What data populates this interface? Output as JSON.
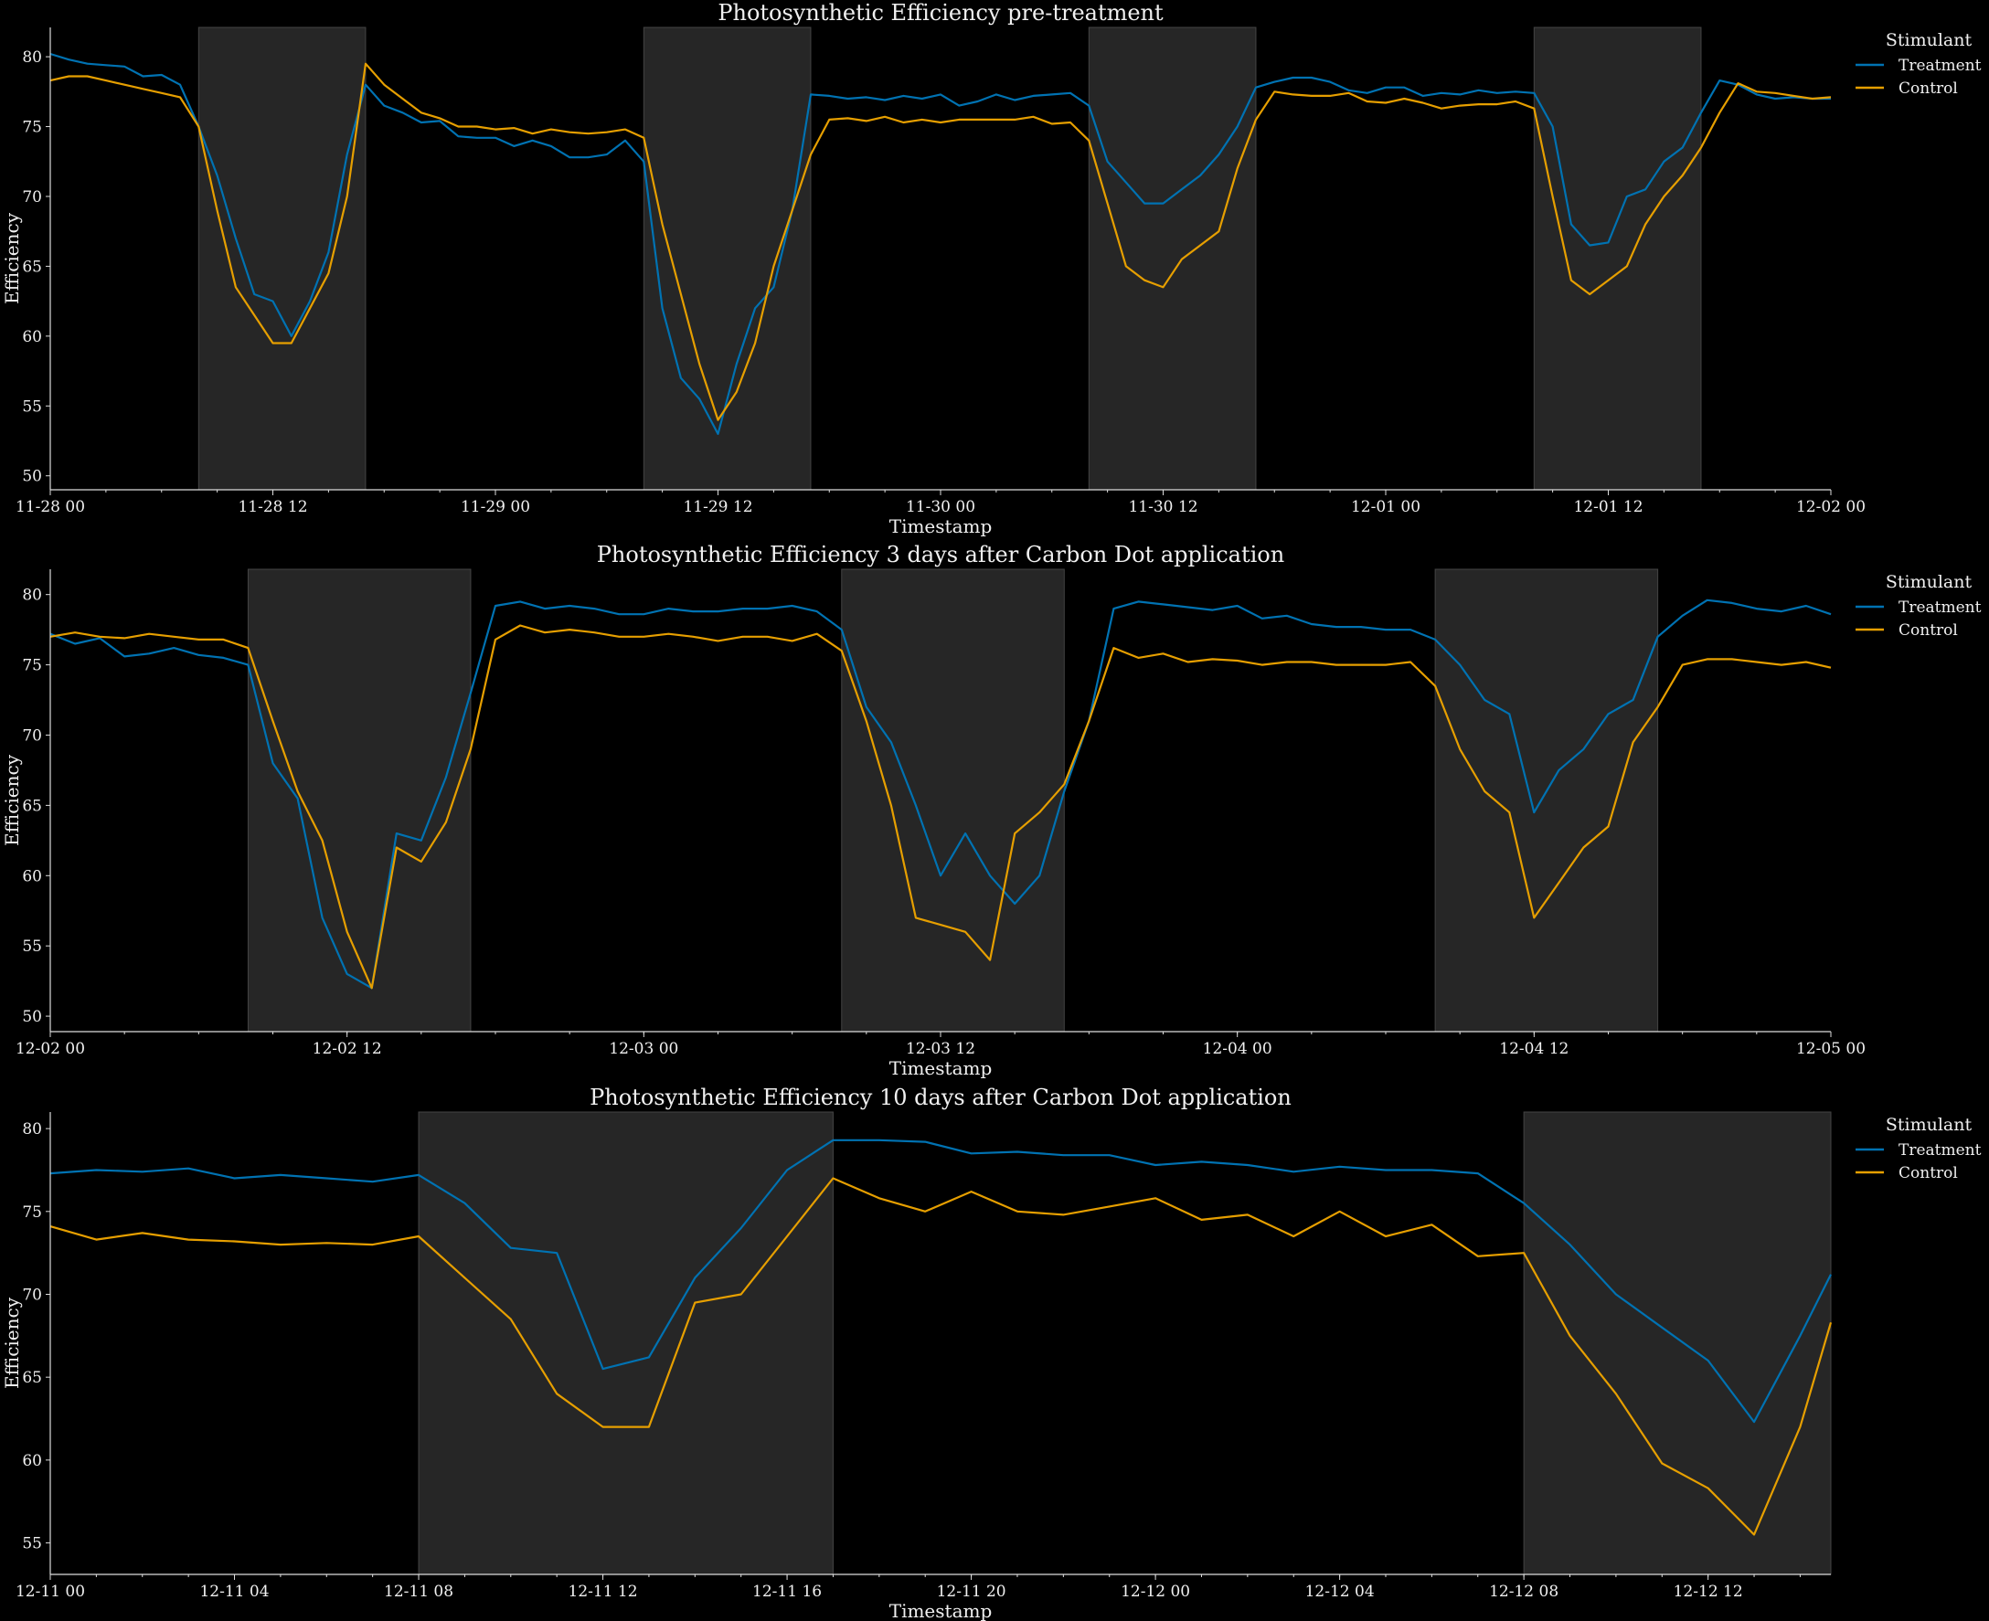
{
  "chart_data": [
    {
      "type": "line",
      "title": "Photosynthetic Efficiency pre-treatment",
      "xlabel": "Timestamp",
      "ylabel": "Efficiency",
      "xlim": [
        "11-28 00:00",
        "12-02 00:00"
      ],
      "ylim": [
        49,
        82.1
      ],
      "yticks": [
        50,
        55,
        60,
        65,
        70,
        75,
        80
      ],
      "xticks": [
        "11-28 00",
        "11-28 12",
        "11-29 00",
        "11-29 12",
        "11-30 00",
        "11-30 12",
        "12-01 00",
        "12-01 12",
        "12-02 00"
      ],
      "grid": false,
      "legend": {
        "title": "Stimulant",
        "placement": "outside-right"
      },
      "shaded_spans": [
        [
          "11-28 08:00",
          "11-28 17:00"
        ],
        [
          "11-29 08:00",
          "11-29 17:00"
        ],
        [
          "11-30 08:00",
          "11-30 17:00"
        ],
        [
          "12-01 08:00",
          "12-01 17:00"
        ]
      ],
      "x": [
        "11-28 00:00",
        "11-28 01:00",
        "11-28 02:00",
        "11-28 03:00",
        "11-28 04:00",
        "11-28 05:00",
        "11-28 06:00",
        "11-28 07:00",
        "11-28 08:00",
        "11-28 09:00",
        "11-28 10:00",
        "11-28 11:00",
        "11-28 12:00",
        "11-28 13:00",
        "11-28 14:00",
        "11-28 15:00",
        "11-28 16:00",
        "11-28 17:00",
        "11-28 18:00",
        "11-28 19:00",
        "11-28 20:00",
        "11-28 21:00",
        "11-28 22:00",
        "11-28 23:00",
        "11-29 00:00",
        "11-29 01:00",
        "11-29 02:00",
        "11-29 03:00",
        "11-29 04:00",
        "11-29 05:00",
        "11-29 06:00",
        "11-29 07:00",
        "11-29 08:00",
        "11-29 09:00",
        "11-29 10:00",
        "11-29 11:00",
        "11-29 12:00",
        "11-29 13:00",
        "11-29 14:00",
        "11-29 15:00",
        "11-29 16:00",
        "11-29 17:00",
        "11-29 18:00",
        "11-29 19:00",
        "11-29 20:00",
        "11-29 21:00",
        "11-29 22:00",
        "11-29 23:00",
        "11-30 00:00",
        "11-30 01:00",
        "11-30 02:00",
        "11-30 03:00",
        "11-30 04:00",
        "11-30 05:00",
        "11-30 06:00",
        "11-30 07:00",
        "11-30 08:00",
        "11-30 09:00",
        "11-30 10:00",
        "11-30 11:00",
        "11-30 12:00",
        "11-30 13:00",
        "11-30 14:00",
        "11-30 15:00",
        "11-30 16:00",
        "11-30 17:00",
        "11-30 18:00",
        "11-30 19:00",
        "11-30 20:00",
        "11-30 21:00",
        "11-30 22:00",
        "11-30 23:00",
        "12-01 00:00",
        "12-01 01:00",
        "12-01 02:00",
        "12-01 03:00",
        "12-01 04:00",
        "12-01 05:00",
        "12-01 06:00",
        "12-01 07:00",
        "12-01 08:00",
        "12-01 09:00",
        "12-01 10:00",
        "12-01 11:00",
        "12-01 12:00",
        "12-01 13:00",
        "12-01 14:00",
        "12-01 15:00",
        "12-01 16:00",
        "12-01 17:00",
        "12-01 18:00",
        "12-01 19:00",
        "12-01 20:00",
        "12-01 21:00",
        "12-01 22:00",
        "12-01 23:00",
        "12-02 00:00"
      ],
      "series": [
        {
          "name": "Treatment",
          "color": "#0072B2",
          "values": [
            80.2,
            79.8,
            79.5,
            79.4,
            79.3,
            78.6,
            78.7,
            78.0,
            75.0,
            71.5,
            67.0,
            63.0,
            62.5,
            60.0,
            62.5,
            66.0,
            73.0,
            78.0,
            76.5,
            76.0,
            75.3,
            75.4,
            74.3,
            74.2,
            74.2,
            73.6,
            74.0,
            73.6,
            72.8,
            72.8,
            73.0,
            74.0,
            72.5,
            62.0,
            57.0,
            55.5,
            53.0,
            58.0,
            62.0,
            63.5,
            69.0,
            77.3,
            77.2,
            77.0,
            77.1,
            76.9,
            77.2,
            77.0,
            77.3,
            76.5,
            76.8,
            77.3,
            76.9,
            77.2,
            77.3,
            77.4,
            76.5,
            72.5,
            71.0,
            69.5,
            69.5,
            70.5,
            71.5,
            73.0,
            75.0,
            77.8,
            78.2,
            78.5,
            78.5,
            78.2,
            77.6,
            77.4,
            77.8,
            77.8,
            77.2,
            77.4,
            77.3,
            77.6,
            77.4,
            77.5,
            77.4,
            75.0,
            68.0,
            66.5,
            66.7,
            70.0,
            70.5,
            72.5,
            73.5,
            76.0,
            78.3,
            78.0,
            77.3,
            77.0,
            77.1,
            77.0,
            77.0
          ]
        },
        {
          "name": "Control",
          "color": "#E69F00",
          "values": [
            78.3,
            78.6,
            78.6,
            78.3,
            78.0,
            77.7,
            77.4,
            77.1,
            75.0,
            69.0,
            63.5,
            61.5,
            59.5,
            59.5,
            62.0,
            64.5,
            70.0,
            79.5,
            78.0,
            77.0,
            76.0,
            75.6,
            75.0,
            75.0,
            74.8,
            74.9,
            74.5,
            74.8,
            74.6,
            74.5,
            74.6,
            74.8,
            74.2,
            68.0,
            63.0,
            58.0,
            54.0,
            56.0,
            59.5,
            65.0,
            69.0,
            73.0,
            75.5,
            75.6,
            75.4,
            75.7,
            75.3,
            75.5,
            75.3,
            75.5,
            75.5,
            75.5,
            75.5,
            75.7,
            75.2,
            75.3,
            74.0,
            69.5,
            65.0,
            64.0,
            63.5,
            65.5,
            66.5,
            67.5,
            72.0,
            75.5,
            77.5,
            77.3,
            77.2,
            77.2,
            77.4,
            76.8,
            76.7,
            77.0,
            76.7,
            76.3,
            76.5,
            76.6,
            76.6,
            76.8,
            76.3,
            70.0,
            64.0,
            63.0,
            64.0,
            65.0,
            68.0,
            70.0,
            71.5,
            73.5,
            76.0,
            78.1,
            77.5,
            77.4,
            77.2,
            77.0,
            77.1
          ]
        }
      ]
    },
    {
      "type": "line",
      "title": "Photosynthetic Efficiency 3 days after Carbon Dot application",
      "xlabel": "Timestamp",
      "ylabel": "Efficiency",
      "xlim": [
        "12-02 00:00",
        "12-05 00:00"
      ],
      "ylim": [
        48.9,
        81.8
      ],
      "yticks": [
        50,
        55,
        60,
        65,
        70,
        75,
        80
      ],
      "xticks": [
        "12-02 00",
        "12-02 12",
        "12-03 00",
        "12-03 12",
        "12-04 00",
        "12-04 12",
        "12-05 00"
      ],
      "grid": false,
      "legend": {
        "title": "Stimulant",
        "placement": "outside-right"
      },
      "shaded_spans": [
        [
          "12-02 08:00",
          "12-02 17:00"
        ],
        [
          "12-03 08:00",
          "12-03 17:00"
        ],
        [
          "12-04 08:00",
          "12-04 17:00"
        ]
      ],
      "x": [
        "12-02 00:00",
        "12-02 01:00",
        "12-02 02:00",
        "12-02 03:00",
        "12-02 04:00",
        "12-02 05:00",
        "12-02 06:00",
        "12-02 07:00",
        "12-02 08:00",
        "12-02 09:00",
        "12-02 10:00",
        "12-02 11:00",
        "12-02 12:00",
        "12-02 13:00",
        "12-02 14:00",
        "12-02 15:00",
        "12-02 16:00",
        "12-02 17:00",
        "12-02 18:00",
        "12-02 19:00",
        "12-02 20:00",
        "12-02 21:00",
        "12-02 22:00",
        "12-02 23:00",
        "12-03 00:00",
        "12-03 01:00",
        "12-03 02:00",
        "12-03 03:00",
        "12-03 04:00",
        "12-03 05:00",
        "12-03 06:00",
        "12-03 07:00",
        "12-03 08:00",
        "12-03 09:00",
        "12-03 10:00",
        "12-03 11:00",
        "12-03 12:00",
        "12-03 13:00",
        "12-03 14:00",
        "12-03 15:00",
        "12-03 16:00",
        "12-03 17:00",
        "12-03 18:00",
        "12-03 19:00",
        "12-03 20:00",
        "12-03 21:00",
        "12-03 22:00",
        "12-03 23:00",
        "12-04 00:00",
        "12-04 01:00",
        "12-04 02:00",
        "12-04 03:00",
        "12-04 04:00",
        "12-04 05:00",
        "12-04 06:00",
        "12-04 07:00",
        "12-04 08:00",
        "12-04 09:00",
        "12-04 10:00",
        "12-04 11:00",
        "12-04 12:00",
        "12-04 13:00",
        "12-04 14:00",
        "12-04 15:00",
        "12-04 16:00",
        "12-04 17:00",
        "12-04 18:00",
        "12-04 19:00",
        "12-04 20:00",
        "12-04 21:00",
        "12-04 22:00",
        "12-04 23:00",
        "12-05 00:00"
      ],
      "series": [
        {
          "name": "Treatment",
          "color": "#0072B2",
          "values": [
            77.2,
            76.5,
            76.9,
            75.6,
            75.8,
            76.2,
            75.7,
            75.5,
            75.0,
            68.0,
            65.5,
            57.0,
            53.0,
            52.0,
            63.0,
            62.5,
            67.0,
            73.0,
            79.2,
            79.5,
            79.0,
            79.2,
            79.0,
            78.6,
            78.6,
            79.0,
            78.8,
            78.8,
            79.0,
            79.0,
            79.2,
            78.8,
            77.5,
            72.0,
            69.5,
            65.0,
            60.0,
            63.0,
            60.0,
            58.0,
            60.0,
            66.0,
            71.0,
            79.0,
            79.5,
            79.3,
            79.1,
            78.9,
            79.2,
            78.3,
            78.5,
            77.9,
            77.7,
            77.7,
            77.5,
            77.5,
            76.8,
            75.0,
            72.5,
            71.5,
            64.5,
            67.5,
            69.0,
            71.5,
            72.5,
            77.0,
            78.5,
            79.6,
            79.4,
            79.0,
            78.8,
            79.2,
            78.6
          ]
        },
        {
          "name": "Control",
          "color": "#E69F00",
          "values": [
            77.0,
            77.3,
            77.0,
            76.9,
            77.2,
            77.0,
            76.8,
            76.8,
            76.2,
            71.0,
            66.0,
            62.5,
            56.0,
            52.0,
            62.0,
            61.0,
            63.8,
            69.0,
            76.8,
            77.8,
            77.3,
            77.5,
            77.3,
            77.0,
            77.0,
            77.2,
            77.0,
            76.7,
            77.0,
            77.0,
            76.7,
            77.2,
            76.0,
            71.0,
            65.0,
            57.0,
            56.5,
            56.0,
            54.0,
            63.0,
            64.5,
            66.5,
            71.0,
            76.2,
            75.5,
            75.8,
            75.2,
            75.4,
            75.3,
            75.0,
            75.2,
            75.2,
            75.0,
            75.0,
            75.0,
            75.2,
            73.5,
            69.0,
            66.0,
            64.5,
            57.0,
            59.5,
            62.0,
            63.5,
            69.5,
            72.0,
            75.0,
            75.4,
            75.4,
            75.2,
            75.0,
            75.2,
            74.8
          ]
        }
      ]
    },
    {
      "type": "line",
      "title": "Photosynthetic Efficiency 10 days after Carbon Dot application",
      "xlabel": "Timestamp",
      "ylabel": "Efficiency",
      "xlim": [
        "12-11 00:00",
        "12-12 14:40"
      ],
      "ylim": [
        53.1,
        81.0
      ],
      "yticks": [
        55,
        60,
        65,
        70,
        75,
        80
      ],
      "xticks": [
        "12-11 00",
        "12-11 04",
        "12-11 08",
        "12-11 12",
        "12-11 16",
        "12-11 20",
        "12-12 00",
        "12-12 04",
        "12-12 08",
        "12-12 12"
      ],
      "grid": false,
      "legend": {
        "title": "Stimulant",
        "placement": "outside-right"
      },
      "shaded_spans": [
        [
          "12-11 08:00",
          "12-11 17:00"
        ],
        [
          "12-12 08:00",
          "12-12 14:40"
        ]
      ],
      "x": [
        "12-11 00:00",
        "12-11 01:00",
        "12-11 02:00",
        "12-11 03:00",
        "12-11 04:00",
        "12-11 05:00",
        "12-11 06:00",
        "12-11 07:00",
        "12-11 08:00",
        "12-11 09:00",
        "12-11 10:00",
        "12-11 11:00",
        "12-11 12:00",
        "12-11 13:00",
        "12-11 14:00",
        "12-11 15:00",
        "12-11 16:00",
        "12-11 17:00",
        "12-11 18:00",
        "12-11 19:00",
        "12-11 20:00",
        "12-11 21:00",
        "12-11 22:00",
        "12-11 23:00",
        "12-12 00:00",
        "12-12 01:00",
        "12-12 02:00",
        "12-12 03:00",
        "12-12 04:00",
        "12-12 05:00",
        "12-12 06:00",
        "12-12 07:00",
        "12-12 08:00",
        "12-12 09:00",
        "12-12 10:00",
        "12-12 11:00",
        "12-12 12:00",
        "12-12 13:00",
        "12-12 14:00",
        "12-12 14:40"
      ],
      "series": [
        {
          "name": "Treatment",
          "color": "#0072B2",
          "values": [
            77.3,
            77.5,
            77.4,
            77.6,
            77.0,
            77.2,
            77.0,
            76.8,
            77.2,
            75.5,
            72.8,
            72.5,
            65.5,
            66.2,
            71.0,
            74.0,
            77.5,
            79.3,
            79.3,
            79.2,
            78.5,
            78.6,
            78.4,
            78.4,
            77.8,
            78.0,
            77.8,
            77.4,
            77.7,
            77.5,
            77.5,
            77.3,
            75.5,
            73.0,
            70.0,
            68.0,
            66.0,
            62.3,
            67.5,
            71.2
          ]
        },
        {
          "name": "Control",
          "color": "#E69F00",
          "values": [
            74.1,
            73.3,
            73.7,
            73.3,
            73.2,
            73.0,
            73.1,
            73.0,
            73.5,
            71.0,
            68.5,
            64.0,
            62.0,
            62.0,
            69.5,
            70.0,
            73.5,
            77.0,
            75.8,
            75.0,
            76.2,
            75.0,
            74.8,
            75.3,
            75.8,
            74.5,
            74.8,
            73.5,
            75.0,
            73.5,
            74.2,
            72.3,
            72.5,
            67.5,
            64.0,
            59.8,
            58.3,
            55.5,
            62.0,
            68.3
          ]
        }
      ]
    }
  ]
}
